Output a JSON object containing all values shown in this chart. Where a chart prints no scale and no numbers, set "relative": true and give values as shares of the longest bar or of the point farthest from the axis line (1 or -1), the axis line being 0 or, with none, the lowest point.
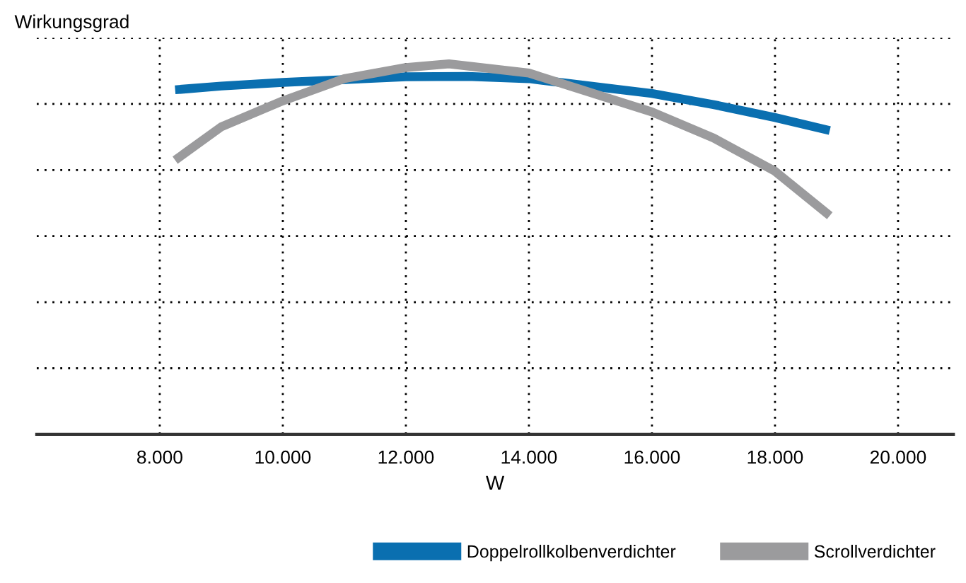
{
  "chart_data": {
    "type": "line",
    "ylabel": "Wirkungsgrad",
    "xlabel": "W",
    "relative": true,
    "xlim": [
      6000,
      20900
    ],
    "xticks": [
      {
        "value": 8000,
        "label": "8.000"
      },
      {
        "value": 10000,
        "label": "10.000"
      },
      {
        "value": 12000,
        "label": "12.000"
      },
      {
        "value": 14000,
        "label": "14.000"
      },
      {
        "value": 16000,
        "label": "16.000"
      },
      {
        "value": 18000,
        "label": "18.000"
      },
      {
        "value": 20000,
        "label": "20.000"
      }
    ],
    "grid": true,
    "legend": "bottom right",
    "marker": "none",
    "line_style": "solid",
    "series": [
      {
        "name": "Doppelrollkolbenverdichter",
        "color": "#0a6fb0",
        "x": [
          8250,
          9000,
          10000,
          12000,
          13000,
          14000,
          16000,
          17000,
          18000,
          18890
        ],
        "values": [
          0.93,
          0.94,
          0.95,
          0.965,
          0.966,
          0.96,
          0.92,
          0.89,
          0.855,
          0.82
        ]
      },
      {
        "name": "Scrollverdichter",
        "color": "#9b9b9d",
        "x": [
          8250,
          9000,
          10000,
          11000,
          12000,
          12700,
          14000,
          16000,
          17000,
          18000,
          18890
        ],
        "values": [
          0.74,
          0.83,
          0.9,
          0.96,
          0.99,
          1.0,
          0.975,
          0.87,
          0.8,
          0.71,
          0.59
        ]
      }
    ]
  }
}
